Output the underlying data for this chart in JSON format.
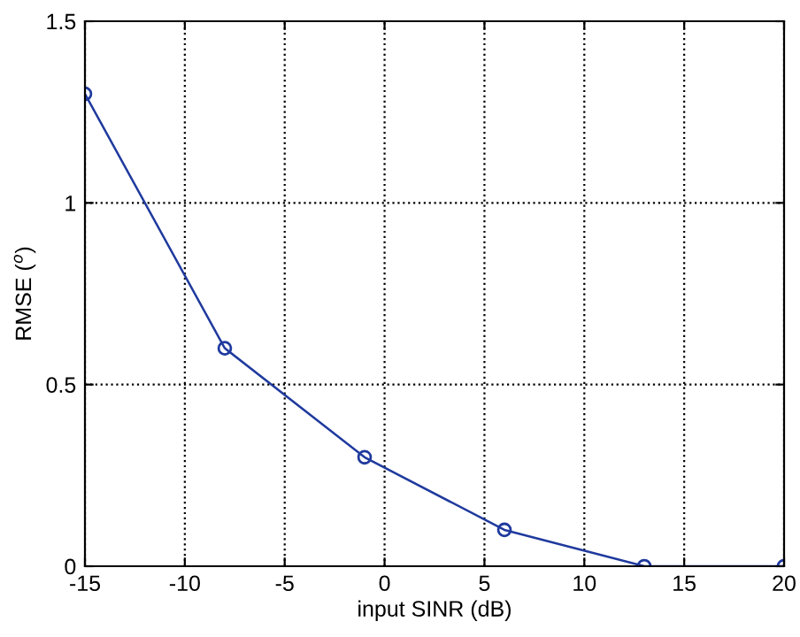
{
  "chart_data": {
    "type": "line",
    "xlabel": "input SINR (dB)",
    "ylabel": "RMSE ($^{o}$)",
    "x": [
      -15,
      -8,
      -1,
      6,
      13,
      20
    ],
    "series": [
      {
        "color": "#1f3a9e",
        "values": [
          1.3,
          0.6,
          0.3,
          0.1,
          0,
          0
        ]
      }
    ],
    "xlim": [
      -15,
      20
    ],
    "ylim": [
      0,
      1.5
    ],
    "xticks": [
      -15,
      -10,
      -5,
      0,
      5,
      10,
      15,
      20
    ],
    "yticks": [
      0,
      0.5,
      1,
      1.5
    ],
    "grid": true,
    "marker": "circle",
    "line_style": "solid"
  }
}
